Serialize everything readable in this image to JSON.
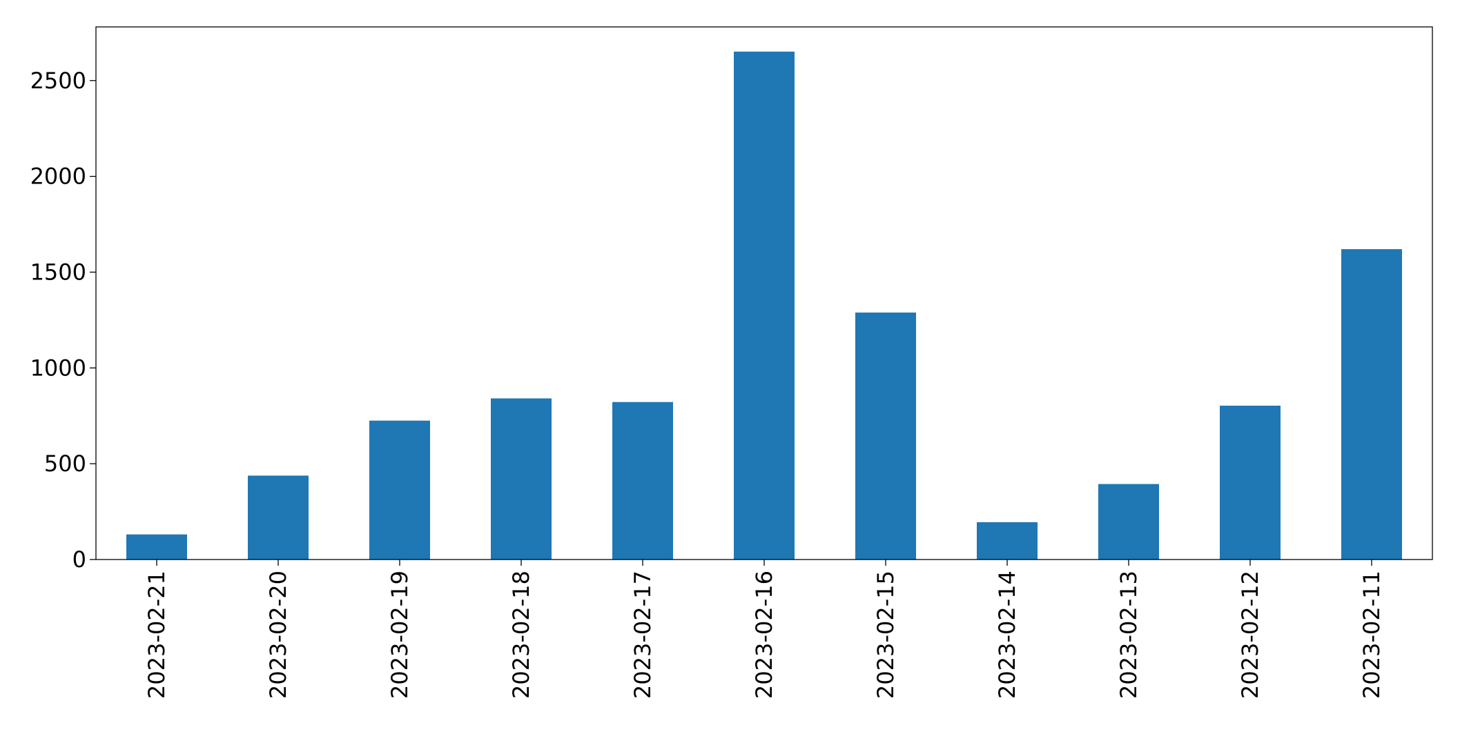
{
  "chart_data": {
    "type": "bar",
    "categories": [
      "2023-02-21",
      "2023-02-20",
      "2023-02-19",
      "2023-02-18",
      "2023-02-17",
      "2023-02-16",
      "2023-02-15",
      "2023-02-14",
      "2023-02-13",
      "2023-02-12",
      "2023-02-11"
    ],
    "values": [
      131,
      438,
      725,
      841,
      822,
      2651,
      1289,
      195,
      394,
      803,
      1620
    ],
    "color": "#1f77b4",
    "ylim": [
      0,
      2780
    ],
    "yticks": [
      0,
      500,
      1000,
      1500,
      2000,
      2500
    ],
    "grid": false
  }
}
